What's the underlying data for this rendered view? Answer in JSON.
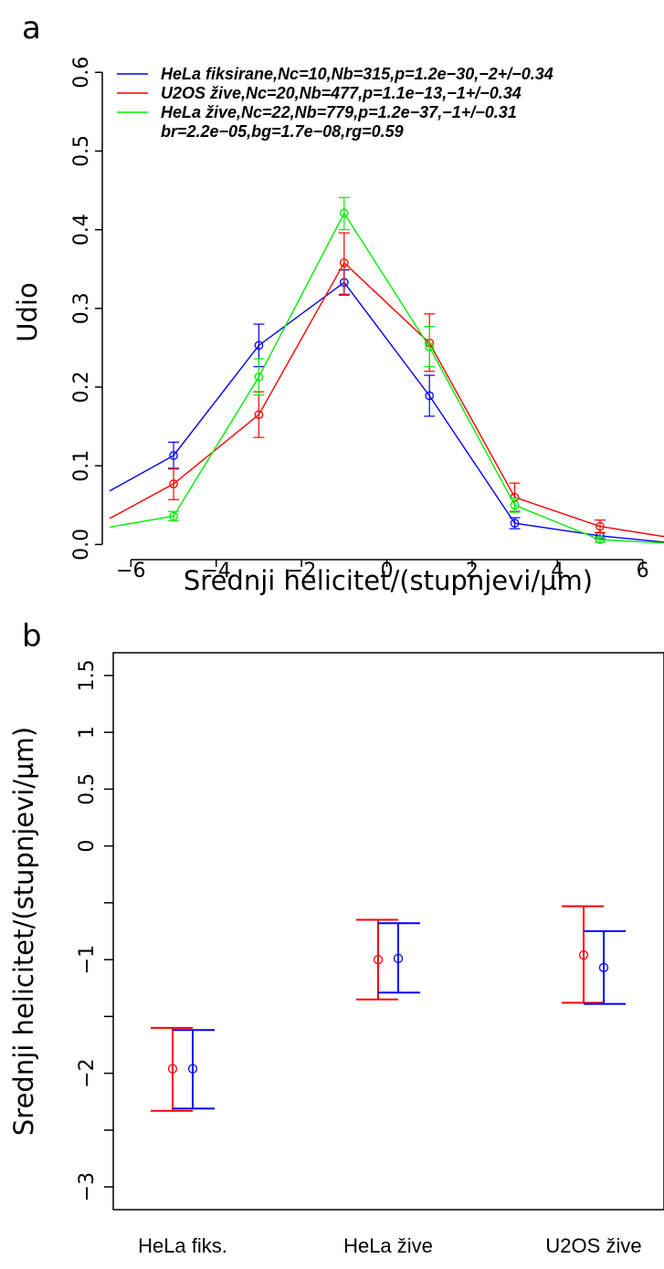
{
  "panels": {
    "a": "a",
    "b": "b"
  },
  "colors": {
    "blue": "#0000ff",
    "red": "#ff0000",
    "green": "#00ee00",
    "axis": "#000000"
  },
  "chart_data": [
    {
      "type": "line",
      "title": "",
      "xlabel": "Srednji helicitet/(stupnjevi/µm)",
      "ylabel": "Udio",
      "xlim": [
        -6.5,
        6.5
      ],
      "ylim": [
        -0.01,
        0.62
      ],
      "xticks": [
        -6,
        -4,
        -2,
        0,
        2,
        4,
        6
      ],
      "xtick_labels": [
        "−6",
        "−4",
        "−2",
        "0",
        "2",
        "4",
        "6"
      ],
      "yticks": [
        0.0,
        0.1,
        0.2,
        0.3,
        0.4,
        0.5,
        0.6
      ],
      "ytick_labels": [
        "0.0",
        "0.1",
        "0.2",
        "0.3",
        "0.4",
        "0.5",
        "0.6"
      ],
      "grid": false,
      "legend_position": "top",
      "legend_extra": "br=2.2e−05,bg=1.7e−08,rg=0.59",
      "series": [
        {
          "name": "HeLa fiksirane,Nc=10,Nb=315,p=1.2e−30,−2+/−0.34",
          "color": "#0000ff",
          "points": [
            {
              "x": -5,
              "y": 0.113,
              "lo": 0.096,
              "hi": 0.13
            },
            {
              "x": -3,
              "y": 0.253,
              "lo": 0.226,
              "hi": 0.28
            },
            {
              "x": -1,
              "y": 0.333,
              "lo": 0.317,
              "hi": 0.349
            },
            {
              "x": 1,
              "y": 0.189,
              "lo": 0.163,
              "hi": 0.215
            },
            {
              "x": 3,
              "y": 0.027,
              "lo": 0.02,
              "hi": 0.034
            },
            {
              "x": 5,
              "y": 0.011,
              "lo": 0.007,
              "hi": 0.015
            }
          ],
          "edge_left": 0.068,
          "edge_right": 0.003
        },
        {
          "name": "U2OS žive,Nc=20,Nb=477,p=1.1e−13,−1+/−0.34",
          "color": "#ff0000",
          "points": [
            {
              "x": -5,
              "y": 0.077,
              "lo": 0.057,
              "hi": 0.097
            },
            {
              "x": -3,
              "y": 0.165,
              "lo": 0.136,
              "hi": 0.194
            },
            {
              "x": -1,
              "y": 0.358,
              "lo": 0.318,
              "hi": 0.396
            },
            {
              "x": 1,
              "y": 0.256,
              "lo": 0.22,
              "hi": 0.293
            },
            {
              "x": 3,
              "y": 0.06,
              "lo": 0.042,
              "hi": 0.078
            },
            {
              "x": 5,
              "y": 0.023,
              "lo": 0.015,
              "hi": 0.031
            }
          ],
          "edge_left": 0.033,
          "edge_right": 0.01
        },
        {
          "name": "HeLa žive,Nc=22,Nb=779,p=1.2e−37,−1+/−0.31",
          "color": "#00ee00",
          "points": [
            {
              "x": -5,
              "y": 0.036,
              "lo": 0.03,
              "hi": 0.042
            },
            {
              "x": -3,
              "y": 0.213,
              "lo": 0.19,
              "hi": 0.236
            },
            {
              "x": -1,
              "y": 0.421,
              "lo": 0.4,
              "hi": 0.441
            },
            {
              "x": 1,
              "y": 0.251,
              "lo": 0.226,
              "hi": 0.277
            },
            {
              "x": 3,
              "y": 0.05,
              "lo": 0.041,
              "hi": 0.059
            },
            {
              "x": 5,
              "y": 0.006,
              "lo": 0.003,
              "hi": 0.009
            }
          ],
          "edge_left": 0.022,
          "edge_right": 0.002
        }
      ]
    },
    {
      "type": "scatter",
      "title": "",
      "xlabel": "",
      "ylabel": "Srednji helicitet/(stupnjevi/µm)",
      "ylim": [
        -3.2,
        1.7
      ],
      "yticks": [
        1.5,
        1,
        0.5,
        0,
        -1,
        -2,
        -3
      ],
      "ytick_labels": [
        "1.5",
        "1",
        "0.5",
        "0",
        "−1",
        "−2",
        "−3"
      ],
      "minor_yticks": [
        -0.5,
        -1.5,
        -2.5
      ],
      "categories": [
        "HeLa fiks.",
        "HeLa žive",
        "U2OS žive"
      ],
      "grid": false,
      "series": [
        {
          "color": "#ff0000",
          "points": [
            {
              "category": "HeLa fiks.",
              "y": -1.96,
              "lo": -2.33,
              "hi": -1.6
            },
            {
              "category": "HeLa žive",
              "y": -1.0,
              "lo": -1.35,
              "hi": -0.65
            },
            {
              "category": "U2OS žive",
              "y": -0.96,
              "lo": -1.38,
              "hi": -0.53
            }
          ]
        },
        {
          "color": "#0000ff",
          "points": [
            {
              "category": "HeLa fiks.",
              "y": -1.96,
              "lo": -2.31,
              "hi": -1.62
            },
            {
              "category": "HeLa žive",
              "y": -0.99,
              "lo": -1.29,
              "hi": -0.68
            },
            {
              "category": "U2OS žive",
              "y": -1.07,
              "lo": -1.39,
              "hi": -0.75
            }
          ]
        }
      ]
    }
  ]
}
